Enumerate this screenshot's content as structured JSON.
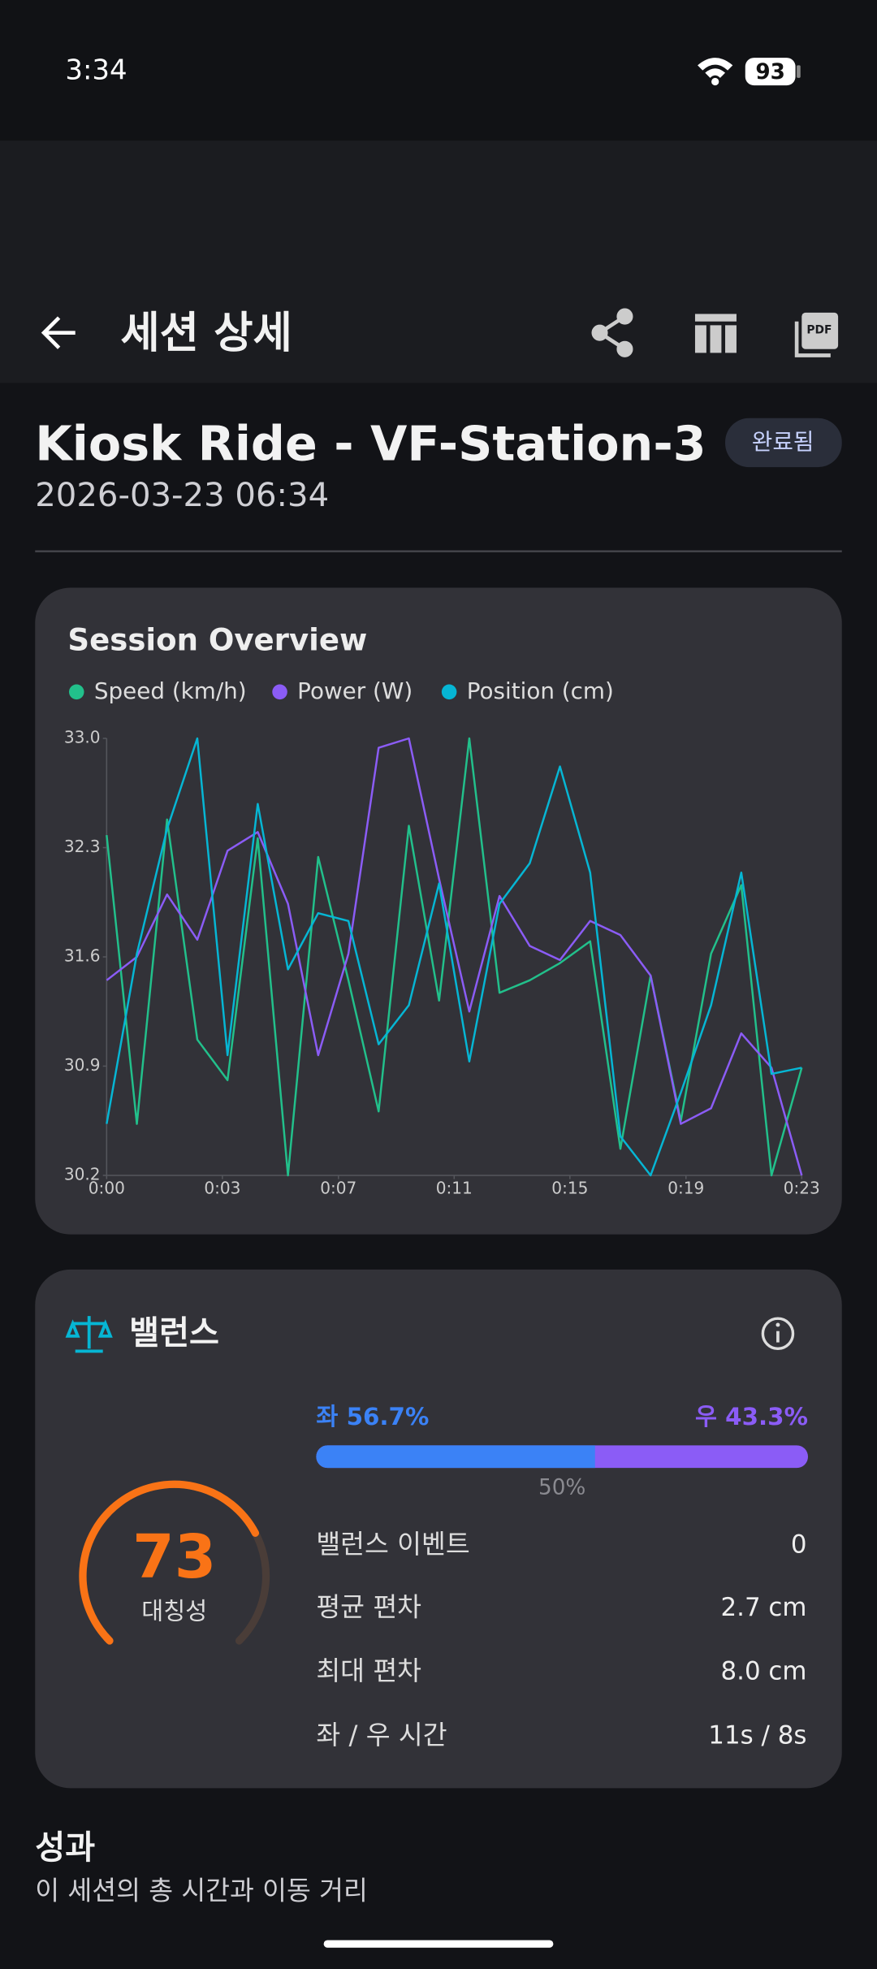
{
  "status_bar": {
    "time": "3:34",
    "battery": "93"
  },
  "app_bar": {
    "title": "세션 상세"
  },
  "session": {
    "title": "Kiosk Ride - VF-Station-3",
    "date": "2026-03-23 06:34",
    "status": "완료됨"
  },
  "chart_data": {
    "type": "line",
    "title": "Session Overview",
    "x": [
      0,
      1,
      2,
      3,
      4,
      5,
      6,
      7,
      8,
      9,
      10,
      11,
      12,
      13,
      14,
      15,
      16,
      17,
      18,
      19,
      20,
      21,
      22,
      23
    ],
    "xlim": [
      0,
      23
    ],
    "xticks": [
      {
        "value": 0,
        "label": "0:00"
      },
      {
        "value": 3.83,
        "label": "0:03"
      },
      {
        "value": 7.67,
        "label": "0:07"
      },
      {
        "value": 11.5,
        "label": "0:11"
      },
      {
        "value": 15.33,
        "label": "0:15"
      },
      {
        "value": 19.17,
        "label": "0:19"
      },
      {
        "value": 23,
        "label": "0:23"
      }
    ],
    "ylim": [
      30.2,
      33.0
    ],
    "yticks": [
      {
        "value": 33,
        "label": "33.0"
      },
      32.3,
      31.6,
      30.9,
      30.2
    ],
    "grid": false,
    "legend": "top-left",
    "series": [
      {
        "name": "Speed (km/h)",
        "color": "#22c08b",
        "values": [
          32.38,
          30.53,
          32.48,
          31.07,
          30.81,
          32.36,
          30.2,
          32.24,
          31.45,
          30.61,
          32.44,
          31.32,
          33.0,
          31.37,
          31.45,
          31.56,
          31.7,
          30.37,
          31.48,
          30.55,
          31.62,
          32.06,
          30.2,
          30.89
        ]
      },
      {
        "name": "Power (W)",
        "color": "#8b5cf6",
        "values": [
          31.45,
          31.6,
          32.0,
          31.71,
          32.28,
          32.4,
          31.94,
          30.97,
          31.62,
          32.94,
          33.0,
          32.1,
          31.25,
          31.99,
          31.67,
          31.58,
          31.83,
          31.74,
          31.48,
          30.53,
          30.63,
          31.11,
          30.89,
          30.2
        ]
      },
      {
        "name": "Position (cm)",
        "color": "#06b6d4",
        "values": [
          30.53,
          31.62,
          32.42,
          33.0,
          30.97,
          32.58,
          31.52,
          31.88,
          31.83,
          31.04,
          31.29,
          32.07,
          30.93,
          31.94,
          32.2,
          32.82,
          32.14,
          30.45,
          30.2,
          30.73,
          31.29,
          32.14,
          30.85,
          30.89
        ]
      }
    ]
  },
  "balance": {
    "title": "밸런스",
    "left": {
      "value": 56.7,
      "label": "좌 56.7%"
    },
    "right": {
      "value": 43.3,
      "label": "우 43.3%"
    },
    "center_label": "50%",
    "score": 73,
    "score_label": "대칭성",
    "rows": [
      {
        "label": "밸런스 이벤트",
        "value": "0"
      },
      {
        "label": "평균 편차",
        "value": "2.7 cm"
      },
      {
        "label": "최대 편차",
        "value": "8.0 cm"
      },
      {
        "label": "좌 / 우 시간",
        "value": "11s / 8s"
      }
    ]
  },
  "section": {
    "title": "성과",
    "subtitle": "이 세션의 총 시간과 이동 거리"
  }
}
